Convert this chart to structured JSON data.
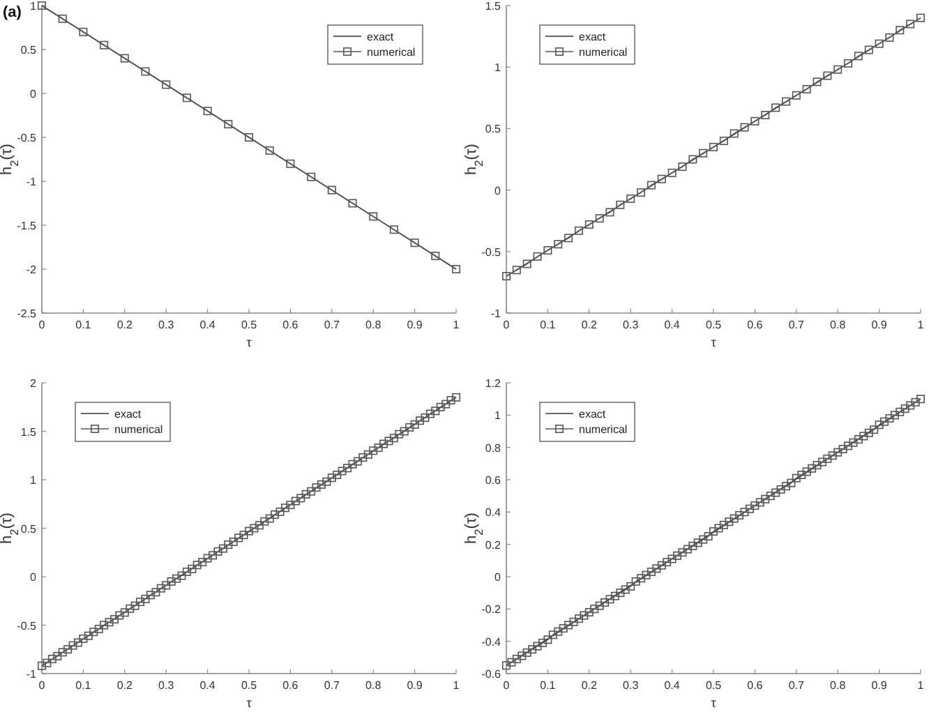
{
  "chart_data": [
    {
      "type": "line",
      "annotations": [
        "(a)"
      ],
      "xlabel": "τ",
      "ylabel": "h$_{2}$(τ)",
      "xlim": [
        0,
        1
      ],
      "ylim": [
        -2.5,
        1
      ],
      "xticks": [
        0,
        0.1,
        0.2,
        0.3,
        0.4,
        0.5,
        0.6,
        0.7,
        0.8,
        0.9,
        1
      ],
      "yticks": [
        -2.5,
        -2,
        -1.5,
        -1,
        -0.5,
        0,
        0.5,
        1
      ],
      "legend": "top right",
      "series": [
        {
          "name": "exact",
          "color": "#333333",
          "marker": "none",
          "line_style": "solid",
          "x": [
            0,
            1
          ],
          "values": [
            1,
            -2
          ]
        },
        {
          "name": "numerical",
          "color": "#555555",
          "marker": "square",
          "line_style": "solid",
          "x": [
            0,
            0.05,
            0.1,
            0.15,
            0.2,
            0.25,
            0.3,
            0.35,
            0.4,
            0.45,
            0.5,
            0.55,
            0.6,
            0.65,
            0.7,
            0.75,
            0.8,
            0.85,
            0.9,
            0.95,
            1
          ],
          "values": [
            1,
            0.85,
            0.7,
            0.55,
            0.4,
            0.25,
            0.1,
            -0.05,
            -0.2,
            -0.35,
            -0.5,
            -0.65,
            -0.8,
            -0.95,
            -1.1,
            -1.25,
            -1.4,
            -1.55,
            -1.7,
            -1.85,
            -2
          ]
        }
      ]
    },
    {
      "type": "line",
      "xlabel": "τ",
      "ylabel": "h$_{2}$(τ)",
      "xlim": [
        0,
        1
      ],
      "ylim": [
        -1,
        1.5
      ],
      "xticks": [
        0,
        0.1,
        0.2,
        0.3,
        0.4,
        0.5,
        0.6,
        0.7,
        0.8,
        0.9,
        1
      ],
      "yticks": [
        -1,
        -0.5,
        0,
        0.5,
        1,
        1.5
      ],
      "legend": "top left",
      "series": [
        {
          "name": "exact",
          "color": "#333333",
          "marker": "none",
          "line_style": "solid",
          "x": [
            0,
            1
          ],
          "values": [
            -0.7,
            1.4
          ]
        },
        {
          "name": "numerical",
          "color": "#555555",
          "marker": "square",
          "line_style": "solid",
          "x": [
            0,
            0.025,
            0.05,
            0.075,
            0.1,
            0.125,
            0.15,
            0.175,
            0.2,
            0.225,
            0.25,
            0.275,
            0.3,
            0.325,
            0.35,
            0.375,
            0.4,
            0.425,
            0.45,
            0.475,
            0.5,
            0.525,
            0.55,
            0.575,
            0.6,
            0.625,
            0.65,
            0.675,
            0.7,
            0.725,
            0.75,
            0.775,
            0.8,
            0.825,
            0.85,
            0.875,
            0.9,
            0.925,
            0.95,
            0.975,
            1
          ],
          "values": [
            -0.7,
            -0.65,
            -0.6,
            -0.54,
            -0.49,
            -0.44,
            -0.39,
            -0.33,
            -0.28,
            -0.23,
            -0.18,
            -0.12,
            -0.07,
            -0.02,
            0.04,
            0.09,
            0.14,
            0.19,
            0.25,
            0.3,
            0.35,
            0.4,
            0.46,
            0.51,
            0.56,
            0.61,
            0.67,
            0.72,
            0.77,
            0.82,
            0.88,
            0.93,
            0.98,
            1.03,
            1.09,
            1.14,
            1.19,
            1.24,
            1.3,
            1.35,
            1.4
          ]
        }
      ]
    },
    {
      "type": "line",
      "xlabel": "τ",
      "ylabel": "h$_{2}$(τ)",
      "xlim": [
        0,
        1
      ],
      "ylim": [
        -1,
        2
      ],
      "xticks": [
        0,
        0.1,
        0.2,
        0.3,
        0.4,
        0.5,
        0.6,
        0.7,
        0.8,
        0.9,
        1
      ],
      "yticks": [
        -1,
        -0.5,
        0,
        0.5,
        1,
        1.5,
        2
      ],
      "legend": "top left",
      "series": [
        {
          "name": "exact",
          "color": "#333333",
          "marker": "none",
          "line_style": "solid",
          "x": [
            0,
            1
          ],
          "values": [
            -0.92,
            1.85
          ]
        },
        {
          "name": "numerical",
          "color": "#555555",
          "marker": "square",
          "line_style": "solid",
          "x": [
            0,
            0.0125,
            0.025,
            0.0375,
            0.05,
            0.0625,
            0.075,
            0.0875,
            0.1,
            0.1125,
            0.125,
            0.1375,
            0.15,
            0.1625,
            0.175,
            0.1875,
            0.2,
            0.2125,
            0.225,
            0.2375,
            0.25,
            0.2625,
            0.275,
            0.2875,
            0.3,
            0.3125,
            0.325,
            0.3375,
            0.35,
            0.3625,
            0.375,
            0.3875,
            0.4,
            0.4125,
            0.425,
            0.4375,
            0.45,
            0.4625,
            0.475,
            0.4875,
            0.5,
            0.5125,
            0.525,
            0.5375,
            0.55,
            0.5625,
            0.575,
            0.5875,
            0.6,
            0.6125,
            0.625,
            0.6375,
            0.65,
            0.6625,
            0.675,
            0.6875,
            0.7,
            0.7125,
            0.725,
            0.7375,
            0.75,
            0.7625,
            0.775,
            0.7875,
            0.8,
            0.8125,
            0.825,
            0.8375,
            0.85,
            0.8625,
            0.875,
            0.8875,
            0.9,
            0.9125,
            0.925,
            0.9375,
            0.95,
            0.9625,
            0.975,
            0.9875,
            1
          ],
          "values": [
            -0.92,
            -0.89,
            -0.85,
            -0.82,
            -0.78,
            -0.75,
            -0.71,
            -0.68,
            -0.64,
            -0.61,
            -0.57,
            -0.54,
            -0.5,
            -0.47,
            -0.44,
            -0.4,
            -0.37,
            -0.33,
            -0.3,
            -0.26,
            -0.23,
            -0.19,
            -0.16,
            -0.12,
            -0.09,
            -0.05,
            -0.02,
            0.01,
            0.05,
            0.08,
            0.12,
            0.15,
            0.19,
            0.22,
            0.26,
            0.29,
            0.33,
            0.36,
            0.4,
            0.43,
            0.47,
            0.5,
            0.53,
            0.57,
            0.6,
            0.64,
            0.67,
            0.71,
            0.74,
            0.78,
            0.81,
            0.85,
            0.88,
            0.92,
            0.95,
            0.98,
            1.02,
            1.05,
            1.09,
            1.12,
            1.16,
            1.19,
            1.23,
            1.26,
            1.3,
            1.33,
            1.37,
            1.4,
            1.43,
            1.47,
            1.5,
            1.54,
            1.57,
            1.61,
            1.64,
            1.68,
            1.71,
            1.75,
            1.78,
            1.82,
            1.85
          ]
        }
      ]
    },
    {
      "type": "line",
      "xlabel": "τ",
      "ylabel": "h$_{2}$(τ)",
      "xlim": [
        0,
        1
      ],
      "ylim": [
        -0.6,
        1.2
      ],
      "xticks": [
        0,
        0.1,
        0.2,
        0.3,
        0.4,
        0.5,
        0.6,
        0.7,
        0.8,
        0.9,
        1
      ],
      "yticks": [
        -0.6,
        -0.4,
        -0.2,
        0,
        0.2,
        0.4,
        0.6,
        0.8,
        1,
        1.2
      ],
      "legend": "top left",
      "series": [
        {
          "name": "exact",
          "color": "#333333",
          "marker": "none",
          "line_style": "solid",
          "x": [
            0,
            1
          ],
          "values": [
            -0.55,
            1.1
          ]
        },
        {
          "name": "numerical",
          "color": "#555555",
          "marker": "square",
          "line_style": "solid",
          "x": [
            0,
            0.0125,
            0.025,
            0.0375,
            0.05,
            0.0625,
            0.075,
            0.0875,
            0.1,
            0.1125,
            0.125,
            0.1375,
            0.15,
            0.1625,
            0.175,
            0.1875,
            0.2,
            0.2125,
            0.225,
            0.2375,
            0.25,
            0.2625,
            0.275,
            0.2875,
            0.3,
            0.3125,
            0.325,
            0.3375,
            0.35,
            0.3625,
            0.375,
            0.3875,
            0.4,
            0.4125,
            0.425,
            0.4375,
            0.45,
            0.4625,
            0.475,
            0.4875,
            0.5,
            0.5125,
            0.525,
            0.5375,
            0.55,
            0.5625,
            0.575,
            0.5875,
            0.6,
            0.6125,
            0.625,
            0.6375,
            0.65,
            0.6625,
            0.675,
            0.6875,
            0.7,
            0.7125,
            0.725,
            0.7375,
            0.75,
            0.7625,
            0.775,
            0.7875,
            0.8,
            0.8125,
            0.825,
            0.8375,
            0.85,
            0.8625,
            0.875,
            0.8875,
            0.9,
            0.9125,
            0.925,
            0.9375,
            0.95,
            0.9625,
            0.975,
            0.9875,
            1
          ],
          "values": [
            -0.55,
            -0.53,
            -0.51,
            -0.49,
            -0.47,
            -0.45,
            -0.43,
            -0.41,
            -0.39,
            -0.36,
            -0.34,
            -0.32,
            -0.3,
            -0.28,
            -0.26,
            -0.24,
            -0.22,
            -0.2,
            -0.18,
            -0.16,
            -0.14,
            -0.12,
            -0.1,
            -0.08,
            -0.06,
            -0.03,
            -0.01,
            0.01,
            0.03,
            0.05,
            0.07,
            0.09,
            0.11,
            0.13,
            0.15,
            0.17,
            0.19,
            0.21,
            0.23,
            0.25,
            0.28,
            0.3,
            0.32,
            0.34,
            0.36,
            0.38,
            0.4,
            0.42,
            0.44,
            0.46,
            0.48,
            0.5,
            0.52,
            0.54,
            0.56,
            0.58,
            0.61,
            0.63,
            0.65,
            0.67,
            0.69,
            0.71,
            0.73,
            0.75,
            0.77,
            0.79,
            0.81,
            0.83,
            0.85,
            0.87,
            0.89,
            0.91,
            0.94,
            0.96,
            0.98,
            1,
            1.02,
            1.04,
            1.06,
            1.08,
            1.1
          ]
        }
      ]
    }
  ]
}
